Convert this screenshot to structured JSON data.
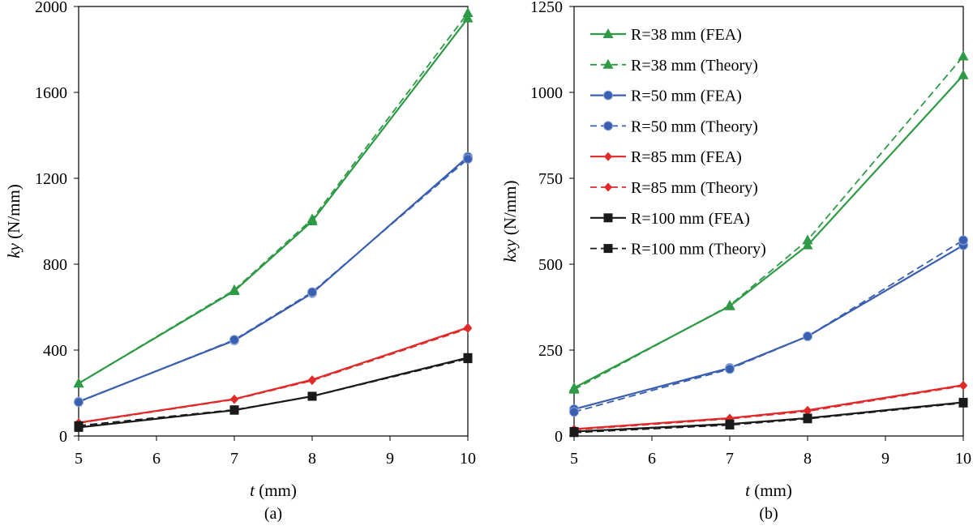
{
  "chart_data": [
    {
      "type": "line",
      "panel_label": "(a)",
      "xlabel_italic": "t",
      "xlabel_unit": " (mm)",
      "ylabel_italic": "ky",
      "ylabel_unit": " (N/mm)",
      "xlim": [
        5,
        10
      ],
      "ylim": [
        0,
        2000
      ],
      "xticks": [
        "5",
        "6",
        "7",
        "8",
        "9",
        "10"
      ],
      "yticks": [
        "0",
        "400",
        "800",
        "1200",
        "1600",
        "2000"
      ],
      "x": [
        5,
        7,
        8,
        10
      ],
      "grid": false,
      "series": [
        {
          "name": "R=38 mm (FEA)",
          "color": "#2e9a46",
          "marker": "triangle",
          "dashed": false,
          "values": [
            245,
            675,
            1000,
            1945
          ]
        },
        {
          "name": "R=38 mm (Theory)",
          "color": "#2e9a46",
          "marker": "triangle",
          "dashed": true,
          "values": [
            245,
            680,
            1010,
            1970
          ]
        },
        {
          "name": "R=50 mm (FEA)",
          "color": "#3a5fb0",
          "marker": "circle",
          "dashed": false,
          "values": [
            160,
            445,
            665,
            1300
          ]
        },
        {
          "name": "R=50 mm (Theory)",
          "color": "#3a5fb0",
          "marker": "circle",
          "dashed": true,
          "values": [
            158,
            448,
            670,
            1290
          ]
        },
        {
          "name": "R=85 mm (FEA)",
          "color": "#e02a2a",
          "marker": "diamond",
          "dashed": false,
          "values": [
            62,
            172,
            262,
            505
          ]
        },
        {
          "name": "R=85 mm (Theory)",
          "color": "#e02a2a",
          "marker": "diamond",
          "dashed": true,
          "values": [
            60,
            170,
            258,
            500
          ]
        },
        {
          "name": "R=100 mm (FEA)",
          "color": "#1a1a1a",
          "marker": "square",
          "dashed": false,
          "values": [
            40,
            120,
            185,
            365
          ]
        },
        {
          "name": "R=100 mm (Theory)",
          "color": "#1a1a1a",
          "marker": "square",
          "dashed": true,
          "values": [
            48,
            122,
            185,
            360
          ]
        }
      ]
    },
    {
      "type": "line",
      "panel_label": "(b)",
      "xlabel_italic": "t",
      "xlabel_unit": " (mm)",
      "ylabel_italic": "kxy",
      "ylabel_unit": " (N/mm)",
      "xlim": [
        5,
        10
      ],
      "ylim": [
        0,
        1250
      ],
      "xticks": [
        "5",
        "6",
        "7",
        "8",
        "9",
        "10"
      ],
      "yticks": [
        "0",
        "250",
        "500",
        "750",
        "1000",
        "1250"
      ],
      "x": [
        5,
        7,
        8,
        10
      ],
      "grid": false,
      "legend_position": "top-left",
      "series": [
        {
          "name": "R=38 mm (FEA)",
          "color": "#2e9a46",
          "marker": "triangle",
          "dashed": false,
          "values": [
            140,
            378,
            555,
            1050
          ]
        },
        {
          "name": "R=38 mm (Theory)",
          "color": "#2e9a46",
          "marker": "triangle",
          "dashed": true,
          "values": [
            135,
            380,
            570,
            1105
          ]
        },
        {
          "name": "R=50 mm (FEA)",
          "color": "#3a5fb0",
          "marker": "circle",
          "dashed": false,
          "values": [
            78,
            198,
            290,
            555
          ]
        },
        {
          "name": "R=50 mm (Theory)",
          "color": "#3a5fb0",
          "marker": "circle",
          "dashed": true,
          "values": [
            70,
            195,
            290,
            570
          ]
        },
        {
          "name": "R=85 mm (FEA)",
          "color": "#e02a2a",
          "marker": "diamond",
          "dashed": false,
          "values": [
            20,
            52,
            75,
            148
          ]
        },
        {
          "name": "R=85 mm (Theory)",
          "color": "#e02a2a",
          "marker": "diamond",
          "dashed": true,
          "values": [
            18,
            50,
            72,
            146
          ]
        },
        {
          "name": "R=100 mm (FEA)",
          "color": "#1a1a1a",
          "marker": "square",
          "dashed": false,
          "values": [
            13,
            35,
            52,
            98
          ]
        },
        {
          "name": "R=100 mm (Theory)",
          "color": "#1a1a1a",
          "marker": "square",
          "dashed": true,
          "values": [
            10,
            32,
            50,
            96
          ]
        }
      ]
    }
  ]
}
